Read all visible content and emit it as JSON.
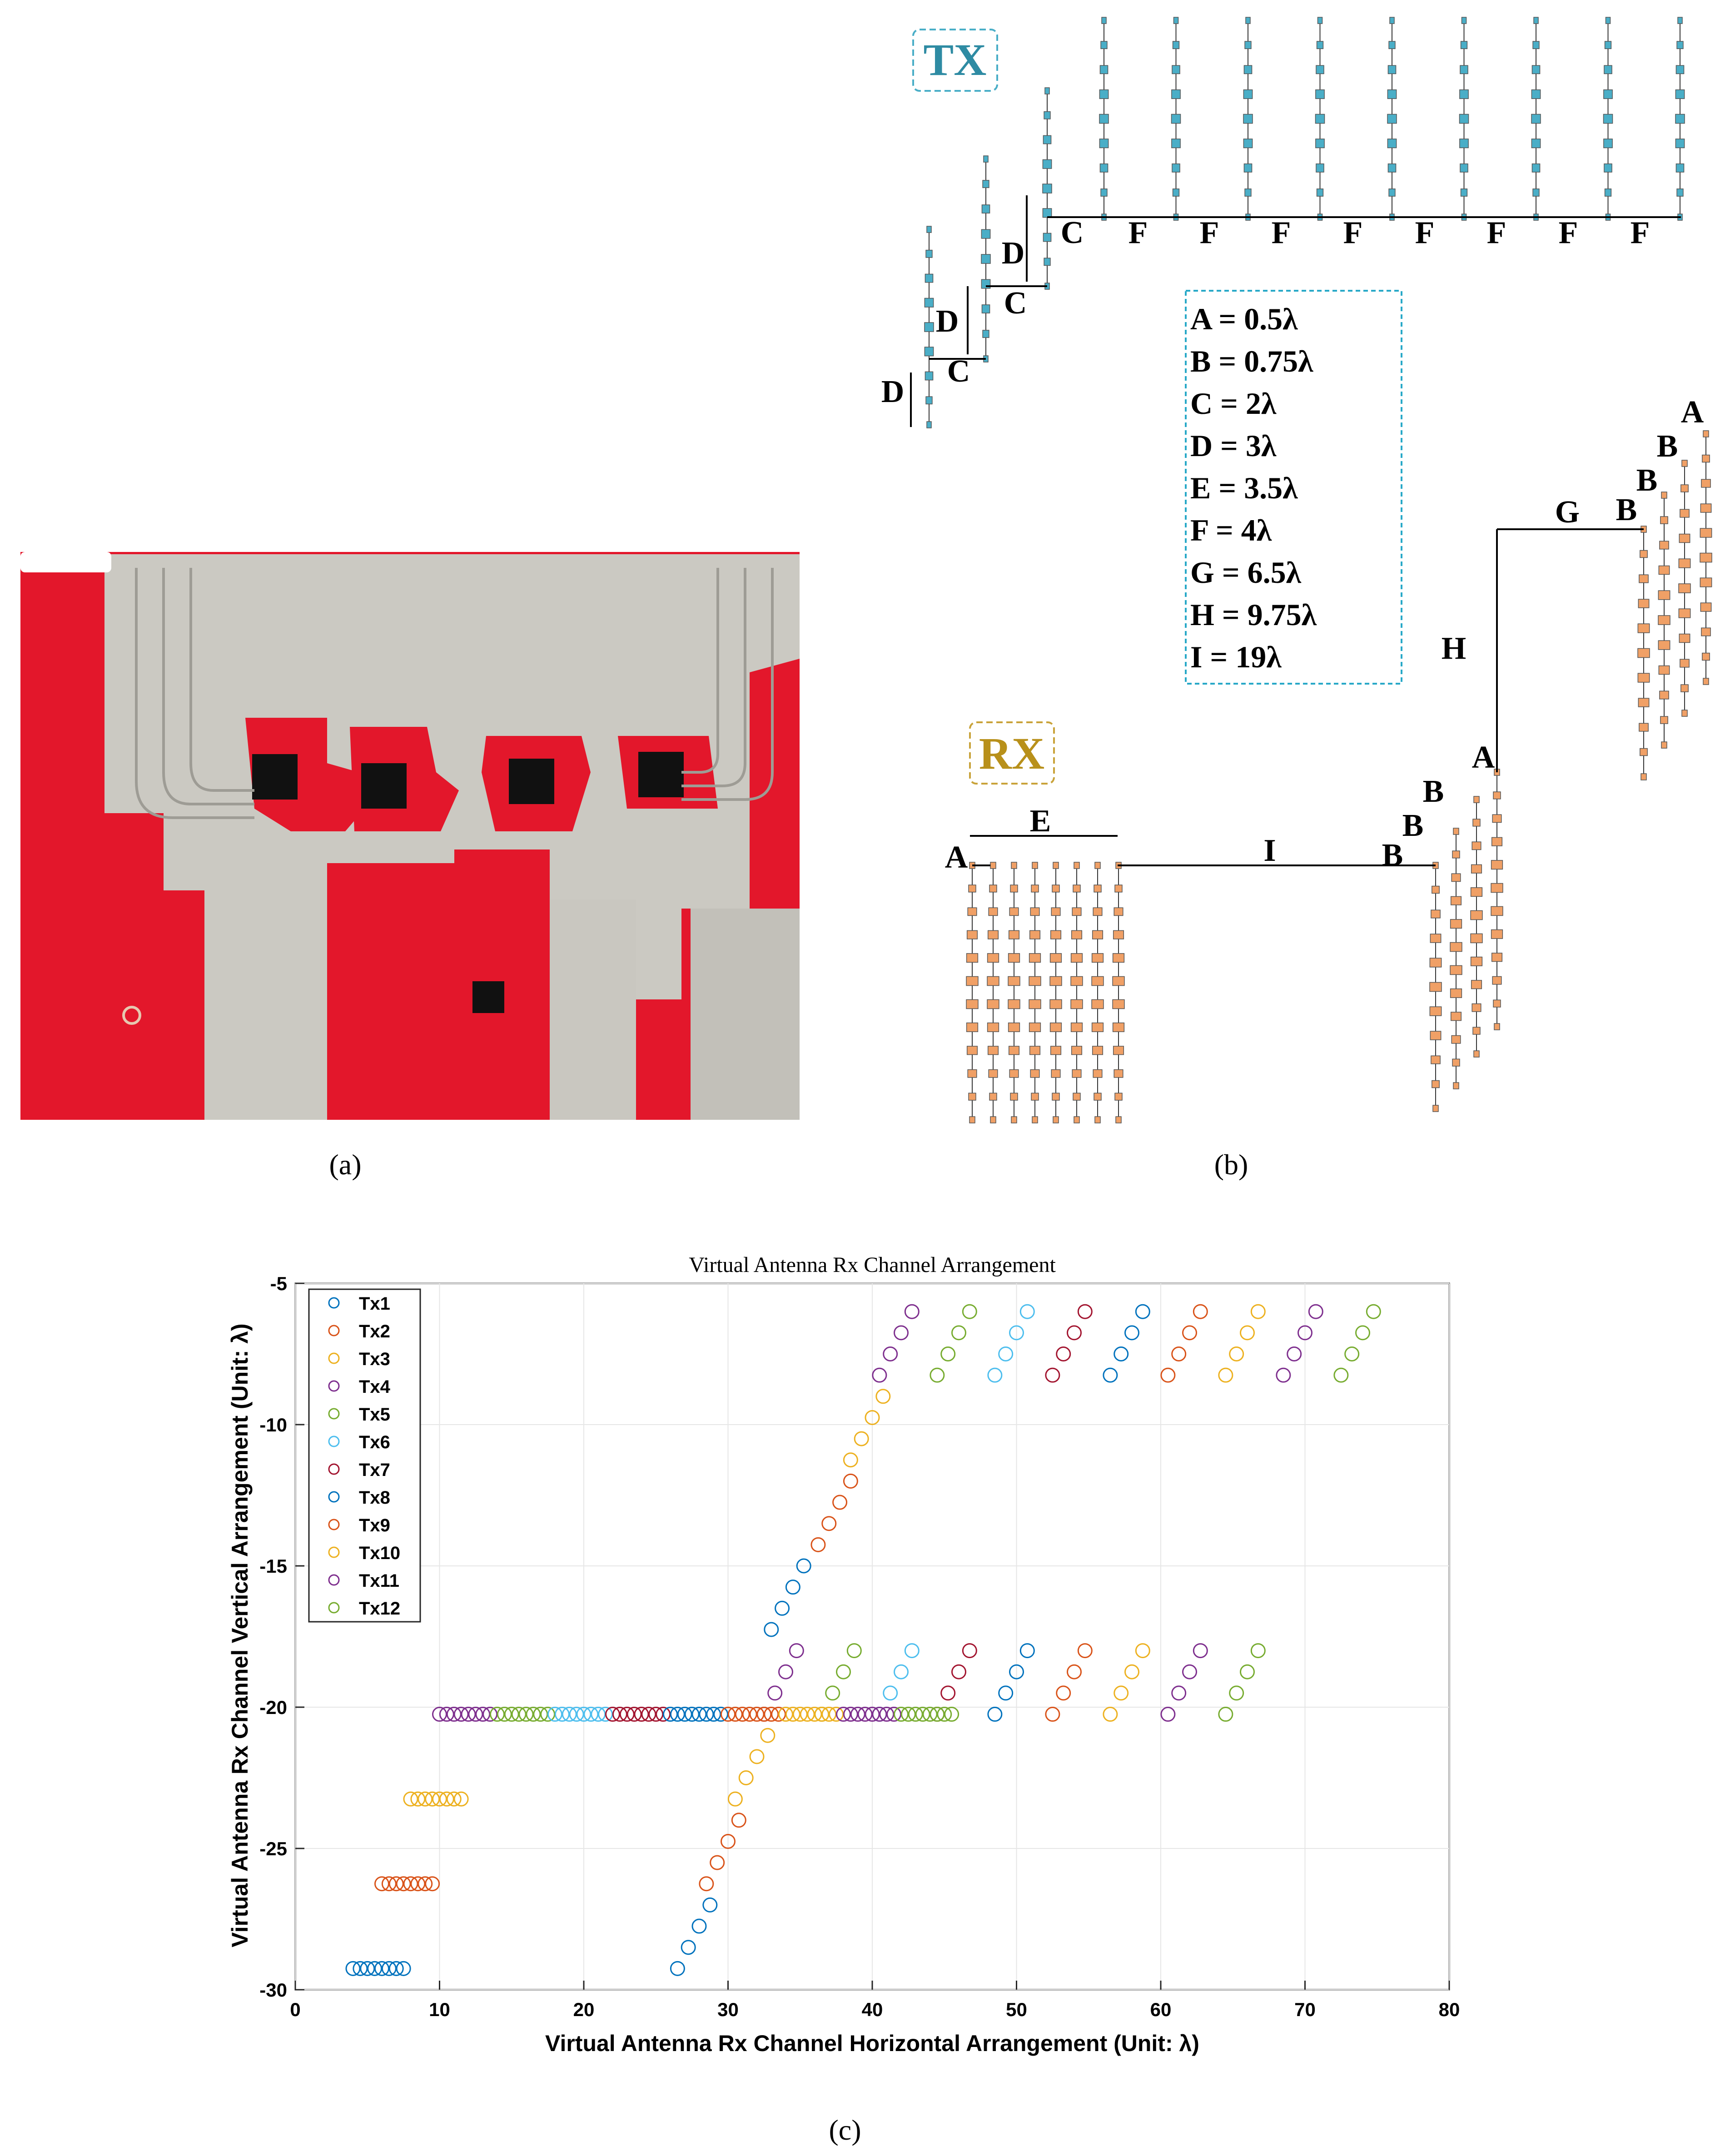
{
  "captions": {
    "a": "(a)",
    "b": "(b)",
    "c": "(c)"
  },
  "diagram": {
    "tx_label": "TX",
    "rx_label": "RX",
    "legend": [
      "A = 0.5λ",
      "B = 0.75λ",
      "C = 2λ",
      "D = 3λ",
      "E = 3.5λ",
      "F = 4λ",
      "G = 6.5λ",
      "H = 9.75λ",
      "I = 19λ"
    ],
    "letters": {
      "A": "A",
      "B": "B",
      "C": "C",
      "D": "D",
      "E": "E",
      "F": "F",
      "G": "G",
      "H": "H",
      "I": "I"
    },
    "colors": {
      "tx": "#4aaec7",
      "rx": "#f0a066",
      "pcb_red": "#e3172b",
      "pcb_silver": "#c8c6c0"
    }
  },
  "chart_data": {
    "type": "scatter",
    "title": "Virtual Antenna Rx Channel Arrangement",
    "xlabel": "Virtual Antenna Rx Channel Horizontal Arrangement (Unit: λ)",
    "ylabel": "Virtual Antenna Rx Channel Vertical Arrangement (Unit: λ)",
    "xlim": [
      0,
      80
    ],
    "ylim": [
      -30,
      -5
    ],
    "xticks": [
      0,
      10,
      20,
      30,
      40,
      50,
      60,
      70,
      80
    ],
    "yticks": [
      -30,
      -25,
      -20,
      -15,
      -10,
      -5
    ],
    "grid": true,
    "legend_position": "top-left",
    "series": [
      {
        "name": "Tx1",
        "color": "#0072bd",
        "points": [
          [
            4,
            -29.25
          ],
          [
            4.5,
            -29.25
          ],
          [
            5,
            -29.25
          ],
          [
            5.5,
            -29.25
          ],
          [
            6,
            -29.25
          ],
          [
            6.5,
            -29.25
          ],
          [
            7,
            -29.25
          ],
          [
            7.5,
            -29.25
          ],
          [
            26.5,
            -29.25
          ],
          [
            27.25,
            -28.5
          ],
          [
            28,
            -27.75
          ],
          [
            28.75,
            -27
          ],
          [
            33,
            -17.25
          ],
          [
            33.75,
            -16.5
          ],
          [
            34.5,
            -15.75
          ],
          [
            35.25,
            -15
          ]
        ]
      },
      {
        "name": "Tx2",
        "color": "#d95319",
        "points": [
          [
            6,
            -26.25
          ],
          [
            6.5,
            -26.25
          ],
          [
            7,
            -26.25
          ],
          [
            7.5,
            -26.25
          ],
          [
            8,
            -26.25
          ],
          [
            8.5,
            -26.25
          ],
          [
            9,
            -26.25
          ],
          [
            9.5,
            -26.25
          ],
          [
            28.5,
            -26.25
          ],
          [
            29.25,
            -25.5
          ],
          [
            30,
            -24.75
          ],
          [
            30.75,
            -24
          ],
          [
            36.25,
            -14.25
          ],
          [
            37,
            -13.5
          ],
          [
            37.75,
            -12.75
          ],
          [
            38.5,
            -12
          ]
        ]
      },
      {
        "name": "Tx3",
        "color": "#edb120",
        "points": [
          [
            8,
            -23.25
          ],
          [
            8.5,
            -23.25
          ],
          [
            9,
            -23.25
          ],
          [
            9.5,
            -23.25
          ],
          [
            10,
            -23.25
          ],
          [
            10.5,
            -23.25
          ],
          [
            11,
            -23.25
          ],
          [
            11.5,
            -23.25
          ],
          [
            30.5,
            -23.25
          ],
          [
            31.25,
            -22.5
          ],
          [
            32,
            -21.75
          ],
          [
            32.75,
            -21
          ],
          [
            38.5,
            -11.25
          ],
          [
            39.25,
            -10.5
          ],
          [
            40,
            -9.75
          ],
          [
            40.75,
            -9
          ]
        ]
      },
      {
        "name": "Tx4",
        "color": "#7e2f8e",
        "points": [
          [
            10,
            -20.25
          ],
          [
            10.5,
            -20.25
          ],
          [
            11,
            -20.25
          ],
          [
            11.5,
            -20.25
          ],
          [
            12,
            -20.25
          ],
          [
            12.5,
            -20.25
          ],
          [
            13,
            -20.25
          ],
          [
            13.5,
            -20.25
          ],
          [
            32.5,
            -20.25
          ],
          [
            33.25,
            -19.5
          ],
          [
            34,
            -18.75
          ],
          [
            34.75,
            -18
          ],
          [
            40.5,
            -8.25
          ],
          [
            41.25,
            -7.5
          ],
          [
            42,
            -6.75
          ],
          [
            42.75,
            -6
          ]
        ]
      },
      {
        "name": "Tx5",
        "color": "#77ac30",
        "points": [
          [
            14,
            -20.25
          ],
          [
            14.5,
            -20.25
          ],
          [
            15,
            -20.25
          ],
          [
            15.5,
            -20.25
          ],
          [
            16,
            -20.25
          ],
          [
            16.5,
            -20.25
          ],
          [
            17,
            -20.25
          ],
          [
            17.5,
            -20.25
          ],
          [
            36.5,
            -20.25
          ],
          [
            37.25,
            -19.5
          ],
          [
            38,
            -18.75
          ],
          [
            38.75,
            -18
          ],
          [
            44.5,
            -8.25
          ],
          [
            45.25,
            -7.5
          ],
          [
            46,
            -6.75
          ],
          [
            46.75,
            -6
          ]
        ]
      },
      {
        "name": "Tx6",
        "color": "#4dbeee",
        "points": [
          [
            18,
            -20.25
          ],
          [
            18.5,
            -20.25
          ],
          [
            19,
            -20.25
          ],
          [
            19.5,
            -20.25
          ],
          [
            20,
            -20.25
          ],
          [
            20.5,
            -20.25
          ],
          [
            21,
            -20.25
          ],
          [
            21.5,
            -20.25
          ],
          [
            40.5,
            -20.25
          ],
          [
            41.25,
            -19.5
          ],
          [
            42,
            -18.75
          ],
          [
            42.75,
            -18
          ],
          [
            48.5,
            -8.25
          ],
          [
            49.25,
            -7.5
          ],
          [
            50,
            -6.75
          ],
          [
            50.75,
            -6
          ]
        ]
      },
      {
        "name": "Tx7",
        "color": "#a2142f",
        "points": [
          [
            22,
            -20.25
          ],
          [
            22.5,
            -20.25
          ],
          [
            23,
            -20.25
          ],
          [
            23.5,
            -20.25
          ],
          [
            24,
            -20.25
          ],
          [
            24.5,
            -20.25
          ],
          [
            25,
            -20.25
          ],
          [
            25.5,
            -20.25
          ],
          [
            44.5,
            -20.25
          ],
          [
            45.25,
            -19.5
          ],
          [
            46,
            -18.75
          ],
          [
            46.75,
            -18
          ],
          [
            52.5,
            -8.25
          ],
          [
            53.25,
            -7.5
          ],
          [
            54,
            -6.75
          ],
          [
            54.75,
            -6
          ]
        ]
      },
      {
        "name": "Tx8",
        "color": "#0072bd",
        "points": [
          [
            26,
            -20.25
          ],
          [
            26.5,
            -20.25
          ],
          [
            27,
            -20.25
          ],
          [
            27.5,
            -20.25
          ],
          [
            28,
            -20.25
          ],
          [
            28.5,
            -20.25
          ],
          [
            29,
            -20.25
          ],
          [
            29.5,
            -20.25
          ],
          [
            48.5,
            -20.25
          ],
          [
            49.25,
            -19.5
          ],
          [
            50,
            -18.75
          ],
          [
            50.75,
            -18
          ],
          [
            56.5,
            -8.25
          ],
          [
            57.25,
            -7.5
          ],
          [
            58,
            -6.75
          ],
          [
            58.75,
            -6
          ]
        ]
      },
      {
        "name": "Tx9",
        "color": "#d95319",
        "points": [
          [
            30,
            -20.25
          ],
          [
            30.5,
            -20.25
          ],
          [
            31,
            -20.25
          ],
          [
            31.5,
            -20.25
          ],
          [
            32,
            -20.25
          ],
          [
            32.5,
            -20.25
          ],
          [
            33,
            -20.25
          ],
          [
            33.5,
            -20.25
          ],
          [
            52.5,
            -20.25
          ],
          [
            53.25,
            -19.5
          ],
          [
            54,
            -18.75
          ],
          [
            54.75,
            -18
          ],
          [
            60.5,
            -8.25
          ],
          [
            61.25,
            -7.5
          ],
          [
            62,
            -6.75
          ],
          [
            62.75,
            -6
          ]
        ]
      },
      {
        "name": "Tx10",
        "color": "#edb120",
        "points": [
          [
            34,
            -20.25
          ],
          [
            34.5,
            -20.25
          ],
          [
            35,
            -20.25
          ],
          [
            35.5,
            -20.25
          ],
          [
            36,
            -20.25
          ],
          [
            36.5,
            -20.25
          ],
          [
            37,
            -20.25
          ],
          [
            37.5,
            -20.25
          ],
          [
            56.5,
            -20.25
          ],
          [
            57.25,
            -19.5
          ],
          [
            58,
            -18.75
          ],
          [
            58.75,
            -18
          ],
          [
            64.5,
            -8.25
          ],
          [
            65.25,
            -7.5
          ],
          [
            66,
            -6.75
          ],
          [
            66.75,
            -6
          ]
        ]
      },
      {
        "name": "Tx11",
        "color": "#7e2f8e",
        "points": [
          [
            38,
            -20.25
          ],
          [
            38.5,
            -20.25
          ],
          [
            39,
            -20.25
          ],
          [
            39.5,
            -20.25
          ],
          [
            40,
            -20.25
          ],
          [
            40.5,
            -20.25
          ],
          [
            41,
            -20.25
          ],
          [
            41.5,
            -20.25
          ],
          [
            60.5,
            -20.25
          ],
          [
            61.25,
            -19.5
          ],
          [
            62,
            -18.75
          ],
          [
            62.75,
            -18
          ],
          [
            68.5,
            -8.25
          ],
          [
            69.25,
            -7.5
          ],
          [
            70,
            -6.75
          ],
          [
            70.75,
            -6
          ]
        ]
      },
      {
        "name": "Tx12",
        "color": "#77ac30",
        "points": [
          [
            42,
            -20.25
          ],
          [
            42.5,
            -20.25
          ],
          [
            43,
            -20.25
          ],
          [
            43.5,
            -20.25
          ],
          [
            44,
            -20.25
          ],
          [
            44.5,
            -20.25
          ],
          [
            45,
            -20.25
          ],
          [
            45.5,
            -20.25
          ],
          [
            64.5,
            -20.25
          ],
          [
            65.25,
            -19.5
          ],
          [
            66,
            -18.75
          ],
          [
            66.75,
            -18
          ],
          [
            72.5,
            -8.25
          ],
          [
            73.25,
            -7.5
          ],
          [
            74,
            -6.75
          ],
          [
            74.75,
            -6
          ]
        ]
      }
    ]
  }
}
